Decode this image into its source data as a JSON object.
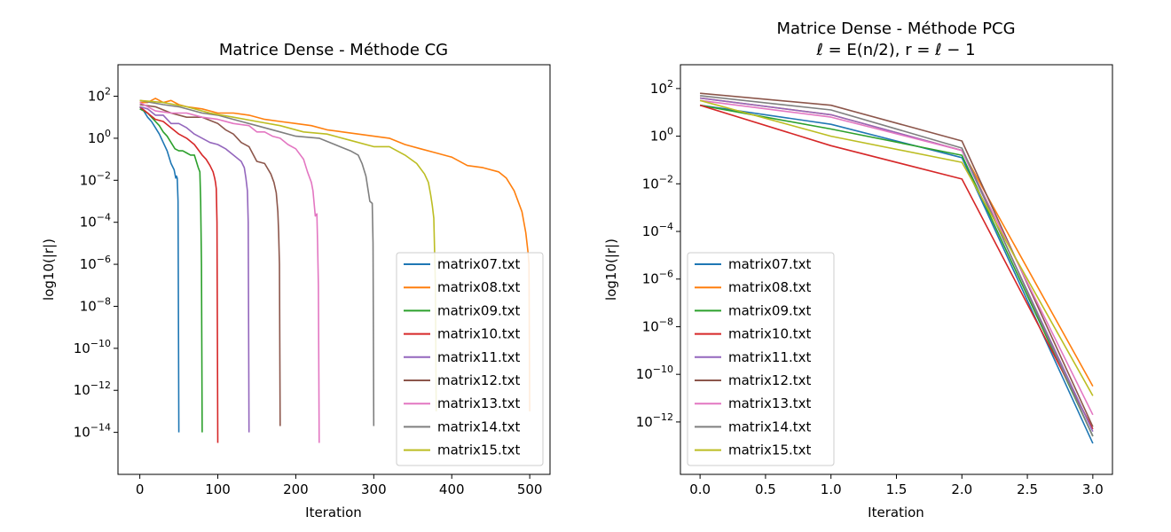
{
  "chart_data": [
    {
      "type": "line",
      "title": "Matrice Dense - Méthode CG",
      "xlabel": "Iteration",
      "ylabel": "log10(|r|)",
      "yscale": "log",
      "xlim": [
        -28,
        526
      ],
      "ylim_log10": [
        -16,
        3.5
      ],
      "grid": false,
      "legend": "lower right",
      "xticks": [
        {
          "value": 0,
          "label": "0"
        },
        {
          "value": 100,
          "label": "100"
        },
        {
          "value": 200,
          "label": "200"
        },
        {
          "value": 300,
          "label": "300"
        },
        {
          "value": 400,
          "label": "400"
        },
        {
          "value": 500,
          "label": "500"
        }
      ],
      "yticks": [
        {
          "value": 2,
          "base": "10",
          "exp": "2"
        },
        {
          "value": 0,
          "base": "10",
          "exp": "0"
        },
        {
          "value": -2,
          "base": "10",
          "exp": "−2"
        },
        {
          "value": -4,
          "base": "10",
          "exp": "−4"
        },
        {
          "value": -6,
          "base": "10",
          "exp": "−6"
        },
        {
          "value": -8,
          "base": "10",
          "exp": "−8"
        },
        {
          "value": -10,
          "base": "10",
          "exp": "−10"
        },
        {
          "value": -12,
          "base": "10",
          "exp": "−12"
        },
        {
          "value": -14,
          "base": "10",
          "exp": "−14"
        }
      ],
      "series": [
        {
          "name": "matrix07.txt",
          "color": "#1f77b4",
          "x": [
            0,
            5,
            10,
            15,
            20,
            25,
            30,
            35,
            40,
            44,
            46,
            47,
            48,
            49,
            50
          ],
          "log10_y": [
            1.5,
            1.3,
            1.0,
            0.8,
            0.5,
            0.2,
            -0.2,
            -0.6,
            -1.2,
            -1.5,
            -1.9,
            -1.8,
            -1.9,
            -3,
            -14
          ]
        },
        {
          "name": "matrix08.txt",
          "color": "#ff7f0e",
          "x": [
            0,
            10,
            20,
            30,
            40,
            50,
            60,
            80,
            100,
            120,
            140,
            160,
            180,
            200,
            220,
            240,
            260,
            280,
            300,
            320,
            340,
            360,
            380,
            400,
            420,
            440,
            460,
            470,
            480,
            490,
            495,
            498,
            499,
            500
          ],
          "log10_y": [
            1.7,
            1.7,
            1.9,
            1.7,
            1.8,
            1.6,
            1.5,
            1.4,
            1.2,
            1.2,
            1.1,
            0.9,
            0.8,
            0.7,
            0.6,
            0.4,
            0.3,
            0.2,
            0.1,
            0.0,
            -0.3,
            -0.5,
            -0.7,
            -0.9,
            -1.3,
            -1.4,
            -1.6,
            -1.9,
            -2.5,
            -3.5,
            -4.5,
            -5.5,
            -6,
            -13
          ]
        },
        {
          "name": "matrix09.txt",
          "color": "#2ca02c",
          "x": [
            0,
            5,
            10,
            15,
            20,
            25,
            30,
            35,
            40,
            45,
            50,
            55,
            60,
            65,
            70,
            75,
            77,
            78,
            79,
            80
          ],
          "log10_y": [
            1.4,
            1.3,
            1.2,
            1.0,
            0.8,
            0.6,
            0.3,
            0.1,
            -0.2,
            -0.5,
            -0.6,
            -0.6,
            -0.7,
            -0.8,
            -0.8,
            -1.4,
            -1.6,
            -3,
            -6,
            -14
          ]
        },
        {
          "name": "matrix10.txt",
          "color": "#d62728",
          "x": [
            0,
            10,
            20,
            30,
            40,
            50,
            60,
            70,
            80,
            85,
            90,
            94,
            96,
            97,
            98,
            99,
            100
          ],
          "log10_y": [
            1.5,
            1.2,
            0.9,
            0.8,
            0.5,
            0.2,
            0.0,
            -0.3,
            -0.8,
            -1.0,
            -1.3,
            -1.6,
            -1.9,
            -2.1,
            -2.4,
            -4,
            -14.5
          ]
        },
        {
          "name": "matrix11.txt",
          "color": "#9467bd",
          "x": [
            0,
            10,
            20,
            30,
            40,
            50,
            60,
            70,
            80,
            90,
            100,
            110,
            120,
            130,
            134,
            136,
            138,
            139,
            140
          ],
          "log10_y": [
            1.5,
            1.4,
            1.1,
            1.1,
            0.7,
            0.7,
            0.5,
            0.2,
            0.0,
            -0.2,
            -0.3,
            -0.5,
            -0.8,
            -1.1,
            -1.4,
            -1.9,
            -2.5,
            -4,
            -14
          ]
        },
        {
          "name": "matrix12.txt",
          "color": "#8c564b",
          "x": [
            0,
            20,
            40,
            60,
            80,
            100,
            110,
            120,
            130,
            140,
            150,
            160,
            168,
            172,
            175,
            177,
            178,
            179,
            180
          ],
          "log10_y": [
            1.6,
            1.5,
            1.2,
            1.0,
            1.0,
            0.7,
            0.4,
            0.2,
            -0.2,
            -0.4,
            -1.1,
            -1.2,
            -1.7,
            -2.1,
            -2.6,
            -3.5,
            -4.5,
            -6,
            -13.7
          ]
        },
        {
          "name": "matrix13.txt",
          "color": "#e377c2",
          "x": [
            0,
            20,
            40,
            60,
            80,
            100,
            120,
            140,
            150,
            160,
            170,
            180,
            190,
            200,
            210,
            215,
            220,
            222,
            225,
            227,
            228,
            229,
            230
          ],
          "log10_y": [
            1.7,
            1.3,
            1.2,
            1.2,
            1.0,
            0.9,
            0.7,
            0.6,
            0.3,
            0.3,
            0.1,
            0.0,
            -0.3,
            -0.5,
            -1.0,
            -1.6,
            -2.1,
            -2.5,
            -3.7,
            -3.6,
            -5,
            -7,
            -14.5
          ]
        },
        {
          "name": "matrix14.txt",
          "color": "#7f7f7f",
          "x": [
            0,
            30,
            50,
            80,
            100,
            130,
            150,
            180,
            200,
            230,
            250,
            270,
            280,
            285,
            290,
            295,
            298,
            299,
            300
          ],
          "log10_y": [
            1.8,
            1.6,
            1.5,
            1.2,
            1.1,
            0.8,
            0.6,
            0.3,
            0.1,
            0.0,
            -0.3,
            -0.6,
            -0.8,
            -1.2,
            -1.8,
            -3.0,
            -3.1,
            -5,
            -13.7
          ]
        },
        {
          "name": "matrix15.txt",
          "color": "#bcbd22",
          "x": [
            0,
            30,
            60,
            90,
            120,
            150,
            180,
            210,
            240,
            270,
            300,
            320,
            340,
            355,
            365,
            370,
            373,
            375,
            377,
            378,
            379,
            380
          ],
          "log10_y": [
            1.8,
            1.7,
            1.5,
            1.2,
            1.0,
            0.8,
            0.6,
            0.3,
            0.2,
            -0.1,
            -0.4,
            -0.4,
            -0.8,
            -1.2,
            -1.7,
            -2.1,
            -2.7,
            -3.2,
            -3.8,
            -5.4,
            -7,
            -13
          ]
        }
      ]
    },
    {
      "type": "line",
      "title": "Matrice Dense - Méthode PCG",
      "subtitle": "ℓ = E(n/2), r = ℓ − 1",
      "xlabel": "Iteration",
      "ylabel": "log10(|r|)",
      "yscale": "log",
      "xlim": [
        -0.15,
        3.15
      ],
      "ylim_log10": [
        -14.2,
        3.0
      ],
      "grid": false,
      "legend": "lower left",
      "xticks": [
        {
          "value": 0,
          "label": "0.0"
        },
        {
          "value": 0.5,
          "label": "0.5"
        },
        {
          "value": 1,
          "label": "1.0"
        },
        {
          "value": 1.5,
          "label": "1.5"
        },
        {
          "value": 2,
          "label": "2.0"
        },
        {
          "value": 2.5,
          "label": "2.5"
        },
        {
          "value": 3,
          "label": "3.0"
        }
      ],
      "yticks": [
        {
          "value": 2,
          "base": "10",
          "exp": "2"
        },
        {
          "value": 0,
          "base": "10",
          "exp": "0"
        },
        {
          "value": -2,
          "base": "10",
          "exp": "−2"
        },
        {
          "value": -4,
          "base": "10",
          "exp": "−4"
        },
        {
          "value": -6,
          "base": "10",
          "exp": "−6"
        },
        {
          "value": -8,
          "base": "10",
          "exp": "−8"
        },
        {
          "value": -10,
          "base": "10",
          "exp": "−10"
        },
        {
          "value": -12,
          "base": "10",
          "exp": "−12"
        }
      ],
      "series": [
        {
          "name": "matrix07.txt",
          "color": "#1f77b4",
          "x": [
            0,
            1,
            2,
            3
          ],
          "log10_y": [
            1.3,
            0.5,
            -0.9,
            -12.9
          ]
        },
        {
          "name": "matrix08.txt",
          "color": "#ff7f0e",
          "x": [
            0,
            1,
            2,
            3
          ],
          "log10_y": [
            1.6,
            0.9,
            -0.6,
            -10.5
          ]
        },
        {
          "name": "matrix09.txt",
          "color": "#2ca02c",
          "x": [
            0,
            1,
            2,
            3
          ],
          "log10_y": [
            1.3,
            0.3,
            -0.8,
            -12.6
          ]
        },
        {
          "name": "matrix10.txt",
          "color": "#d62728",
          "x": [
            0,
            1,
            2,
            3
          ],
          "log10_y": [
            1.3,
            -0.4,
            -1.8,
            -12.3
          ]
        },
        {
          "name": "matrix11.txt",
          "color": "#9467bd",
          "x": [
            0,
            1,
            2,
            3
          ],
          "log10_y": [
            1.6,
            0.9,
            -0.6,
            -12.4
          ]
        },
        {
          "name": "matrix12.txt",
          "color": "#8c564b",
          "x": [
            0,
            1,
            2,
            3
          ],
          "log10_y": [
            1.8,
            1.3,
            -0.2,
            -12.2
          ]
        },
        {
          "name": "matrix13.txt",
          "color": "#e377c2",
          "x": [
            0,
            1,
            2,
            3
          ],
          "log10_y": [
            1.5,
            0.8,
            -0.6,
            -11.7
          ]
        },
        {
          "name": "matrix14.txt",
          "color": "#7f7f7f",
          "x": [
            0,
            1,
            2,
            3
          ],
          "log10_y": [
            1.7,
            1.1,
            -0.5,
            -12.6
          ]
        },
        {
          "name": "matrix15.txt",
          "color": "#bcbd22",
          "x": [
            0,
            1,
            2,
            3
          ],
          "log10_y": [
            1.5,
            0.0,
            -1.1,
            -10.9
          ]
        }
      ]
    }
  ]
}
